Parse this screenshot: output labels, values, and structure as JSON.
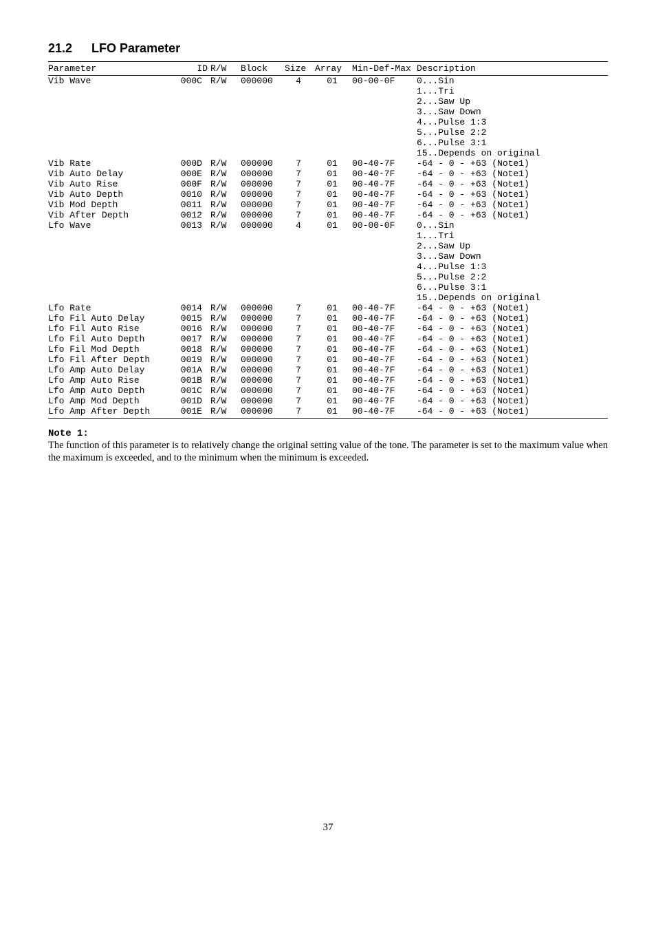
{
  "section": {
    "number": "21.2",
    "title": "LFO Parameter"
  },
  "columns": [
    "Parameter",
    "ID",
    "R/W",
    "Block",
    "Size",
    "Array",
    "Min-Def-Max",
    "Description"
  ],
  "rows": [
    {
      "param": "Vib Wave",
      "id": "000C",
      "rw": "R/W",
      "block": "000000",
      "size": "4",
      "array": "01",
      "min": "00-00-0F",
      "desc": [
        "0...Sin",
        "1...Tri",
        "2...Saw Up",
        "3...Saw Down",
        "4...Pulse 1:3",
        "5...Pulse 2:2",
        "6...Pulse 3:1",
        "15..Depends on original"
      ]
    },
    {
      "param": "Vib Rate",
      "id": "000D",
      "rw": "R/W",
      "block": "000000",
      "size": "7",
      "array": "01",
      "min": "00-40-7F",
      "desc": [
        "-64 - 0 - +63 (Note1)"
      ]
    },
    {
      "param": "Vib Auto Delay",
      "id": "000E",
      "rw": "R/W",
      "block": "000000",
      "size": "7",
      "array": "01",
      "min": "00-40-7F",
      "desc": [
        "-64 - 0 - +63 (Note1)"
      ]
    },
    {
      "param": "Vib Auto Rise",
      "id": "000F",
      "rw": "R/W",
      "block": "000000",
      "size": "7",
      "array": "01",
      "min": "00-40-7F",
      "desc": [
        "-64 - 0 - +63 (Note1)"
      ]
    },
    {
      "param": "Vib Auto Depth",
      "id": "0010",
      "rw": "R/W",
      "block": "000000",
      "size": "7",
      "array": "01",
      "min": "00-40-7F",
      "desc": [
        "-64 - 0 - +63 (Note1)"
      ]
    },
    {
      "param": "Vib Mod Depth",
      "id": "0011",
      "rw": "R/W",
      "block": "000000",
      "size": "7",
      "array": "01",
      "min": "00-40-7F",
      "desc": [
        "-64 - 0 - +63 (Note1)"
      ]
    },
    {
      "param": "Vib After Depth",
      "id": "0012",
      "rw": "R/W",
      "block": "000000",
      "size": "7",
      "array": "01",
      "min": "00-40-7F",
      "desc": [
        "-64 - 0 - +63 (Note1)"
      ]
    },
    {
      "param": "Lfo Wave",
      "id": "0013",
      "rw": "R/W",
      "block": "000000",
      "size": "4",
      "array": "01",
      "min": "00-00-0F",
      "desc": [
        "0...Sin",
        "1...Tri",
        "2...Saw Up",
        "3...Saw Down",
        "4...Pulse 1:3",
        "5...Pulse 2:2",
        "6...Pulse 3:1",
        "15..Depends on original"
      ]
    },
    {
      "param": "Lfo Rate",
      "id": "0014",
      "rw": "R/W",
      "block": "000000",
      "size": "7",
      "array": "01",
      "min": "00-40-7F",
      "desc": [
        "-64 - 0 - +63 (Note1)"
      ]
    },
    {
      "param": "Lfo Fil Auto Delay",
      "id": "0015",
      "rw": "R/W",
      "block": "000000",
      "size": "7",
      "array": "01",
      "min": "00-40-7F",
      "desc": [
        "-64 - 0 - +63 (Note1)"
      ]
    },
    {
      "param": "Lfo Fil Auto Rise",
      "id": "0016",
      "rw": "R/W",
      "block": "000000",
      "size": "7",
      "array": "01",
      "min": "00-40-7F",
      "desc": [
        "-64 - 0 - +63 (Note1)"
      ]
    },
    {
      "param": "Lfo Fil Auto Depth",
      "id": "0017",
      "rw": "R/W",
      "block": "000000",
      "size": "7",
      "array": "01",
      "min": "00-40-7F",
      "desc": [
        "-64 - 0 - +63 (Note1)"
      ]
    },
    {
      "param": "Lfo Fil Mod Depth",
      "id": "0018",
      "rw": "R/W",
      "block": "000000",
      "size": "7",
      "array": "01",
      "min": "00-40-7F",
      "desc": [
        "-64 - 0 - +63 (Note1)"
      ]
    },
    {
      "param": "Lfo Fil After Depth",
      "id": "0019",
      "rw": "R/W",
      "block": "000000",
      "size": "7",
      "array": "01",
      "min": "00-40-7F",
      "desc": [
        "-64 - 0 - +63 (Note1)"
      ]
    },
    {
      "param": "Lfo Amp Auto Delay",
      "id": "001A",
      "rw": "R/W",
      "block": "000000",
      "size": "7",
      "array": "01",
      "min": "00-40-7F",
      "desc": [
        "-64 - 0 - +63 (Note1)"
      ]
    },
    {
      "param": "Lfo Amp Auto Rise",
      "id": "001B",
      "rw": "R/W",
      "block": "000000",
      "size": "7",
      "array": "01",
      "min": "00-40-7F",
      "desc": [
        "-64 - 0 - +63 (Note1)"
      ]
    },
    {
      "param": "Lfo Amp Auto Depth",
      "id": "001C",
      "rw": "R/W",
      "block": "000000",
      "size": "7",
      "array": "01",
      "min": "00-40-7F",
      "desc": [
        "-64 - 0 - +63 (Note1)"
      ]
    },
    {
      "param": "Lfo Amp Mod Depth",
      "id": "001D",
      "rw": "R/W",
      "block": "000000",
      "size": "7",
      "array": "01",
      "min": "00-40-7F",
      "desc": [
        "-64 - 0 - +63 (Note1)"
      ]
    },
    {
      "param": "Lfo Amp After Depth",
      "id": "001E",
      "rw": "R/W",
      "block": "000000",
      "size": "7",
      "array": "01",
      "min": "00-40-7F",
      "desc": [
        "-64 - 0 - +63 (Note1)"
      ]
    }
  ],
  "note": {
    "label": "Note 1:",
    "body": "The function of this parameter is to relatively change the original setting value of the tone. The parameter is set to the maximum value when the maximum is exceeded, and to the minimum when the minimum is exceeded."
  },
  "page_number": "37"
}
